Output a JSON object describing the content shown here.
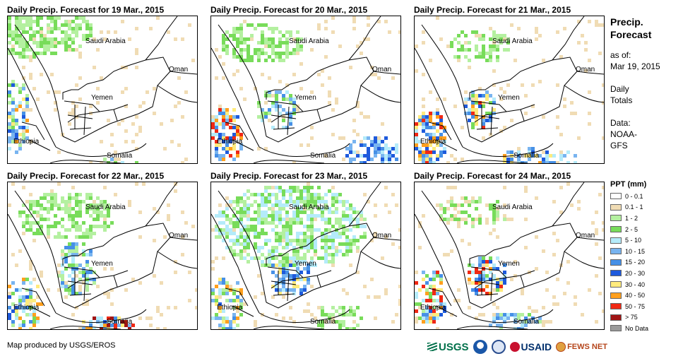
{
  "panels": [
    {
      "title": "Daily Precip. Forecast for 19 Mar., 2015"
    },
    {
      "title": "Daily Precip. Forecast for 20 Mar., 2015"
    },
    {
      "title": "Daily Precip. Forecast for 21 Mar., 2015"
    },
    {
      "title": "Daily Precip. Forecast for 22 Mar., 2015"
    },
    {
      "title": "Daily Precip. Forecast for 23 Mar., 2015"
    },
    {
      "title": "Daily Precip. Forecast for 24 Mar., 2015"
    }
  ],
  "map_labels": {
    "saudi": "Saudi Arabia",
    "oman": "Oman",
    "yemen": "Yemen",
    "ethiopia": "Ethiopia",
    "somalia": "Somalia"
  },
  "sidebar": {
    "title_line1": "Precip.",
    "title_line2": "Forecast",
    "asof_label": "as of:",
    "asof_date": "Mar 19, 2015",
    "daily_line1": "Daily",
    "daily_line2": "Totals",
    "data_label": "Data:",
    "data_line1": "NOAA-",
    "data_line2": "GFS"
  },
  "legend": {
    "title": "PPT (mm)",
    "items": [
      {
        "label": "0 - 0.1",
        "color": "#ffffff"
      },
      {
        "label": "0.1 - 1",
        "color": "#f0dcb4"
      },
      {
        "label": "1 - 2",
        "color": "#b4f0a0"
      },
      {
        "label": "2 - 5",
        "color": "#78dc5a"
      },
      {
        "label": "5 - 10",
        "color": "#b4ebfa"
      },
      {
        "label": "10 - 15",
        "color": "#78b4f0"
      },
      {
        "label": "15 - 20",
        "color": "#4690e6"
      },
      {
        "label": "20 - 30",
        "color": "#1e5adc"
      },
      {
        "label": "30 - 40",
        "color": "#ffeb7d"
      },
      {
        "label": "40 - 50",
        "color": "#ffa01e"
      },
      {
        "label": "50 - 75",
        "color": "#f02814"
      },
      {
        "label": "> 75",
        "color": "#a01414"
      },
      {
        "label": "No Data",
        "color": "#9b9b9b"
      }
    ]
  },
  "credit": "Map produced by USGS/EROS",
  "logos": {
    "usgs": "USGS",
    "usaid": "USAID",
    "fewsnet": "FEWS NET"
  }
}
